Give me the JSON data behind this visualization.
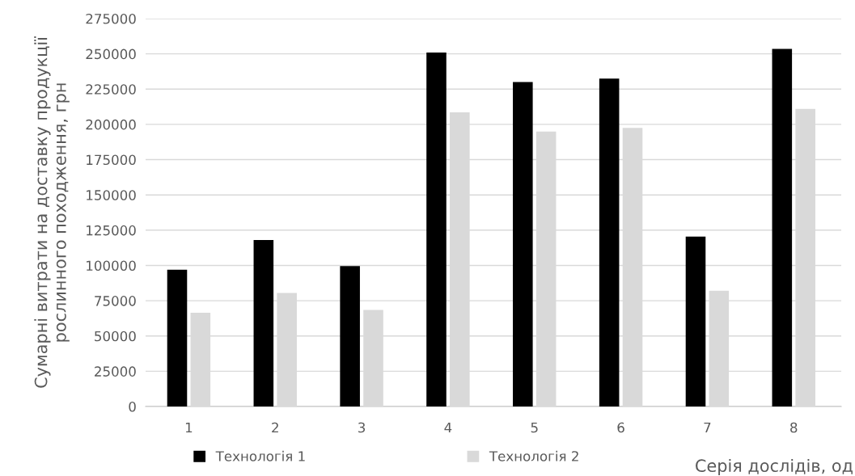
{
  "chart_data": {
    "type": "bar",
    "xlabel": "Серія дослідів, од",
    "ylabel": "Сумарні витрати на доставку продукції\nрослинного походження, грн",
    "categories": [
      "1",
      "2",
      "3",
      "4",
      "5",
      "6",
      "7",
      "8"
    ],
    "series": [
      {
        "name": "Технологія 1",
        "color": "#000000",
        "values": [
          97000,
          118000,
          99500,
          251000,
          230000,
          232500,
          120500,
          253500
        ]
      },
      {
        "name": "Технологія 2",
        "color": "#d9d9d9",
        "values": [
          66500,
          80500,
          68500,
          208500,
          195000,
          197500,
          82000,
          211000
        ]
      }
    ],
    "ylim": [
      0,
      275000
    ],
    "yticks": [
      0,
      25000,
      50000,
      75000,
      100000,
      125000,
      150000,
      175000,
      200000,
      225000,
      250000,
      275000
    ],
    "grid": "y",
    "legend": "bottom left"
  }
}
